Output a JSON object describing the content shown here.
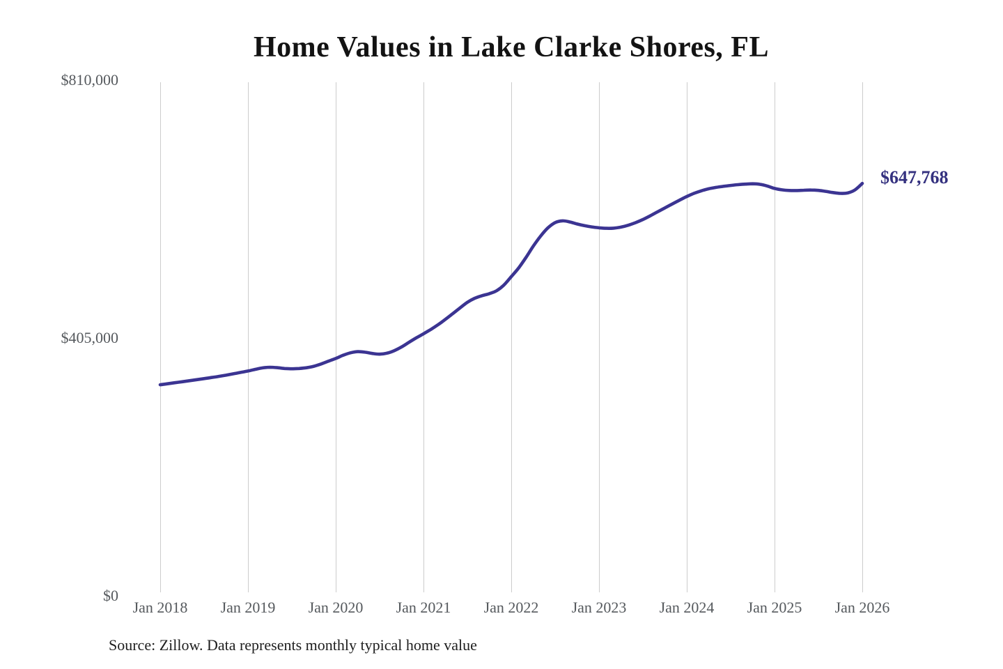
{
  "source_note": "Source: Zillow. Data represents monthly typical home value",
  "chart_data": {
    "type": "line",
    "title": "Home Values in Lake Clarke Shores, FL",
    "x_tick_labels": [
      "Jan 2018",
      "Jan 2019",
      "Jan 2020",
      "Jan 2021",
      "Jan 2022",
      "Jan 2023",
      "Jan 2024",
      "Jan 2025",
      "Jan 2026"
    ],
    "y_tick_labels": [
      "$0",
      "$405,000",
      "$810,000"
    ],
    "ylim": [
      0,
      810000
    ],
    "x_range": {
      "start": "2018-01",
      "end": "2026-01",
      "step": "month"
    },
    "grid": "vertical-only",
    "legend": false,
    "end_label": "$647,768",
    "end_value": 647768,
    "line_color": "#3b3492",
    "end_label_color": "#34317f",
    "grid_color": "#cccccc",
    "series": [
      {
        "name": "Typical home value",
        "values": [
          331500,
          333100,
          334700,
          336300,
          337900,
          339500,
          341200,
          342900,
          344700,
          346600,
          348700,
          350900,
          353100,
          355700,
          358000,
          359000,
          358400,
          357100,
          356600,
          357100,
          358300,
          360600,
          364200,
          368500,
          372800,
          377800,
          381700,
          383500,
          382700,
          380700,
          379600,
          381100,
          385100,
          390900,
          398100,
          405100,
          411600,
          418400,
          425900,
          434300,
          443200,
          452300,
          461000,
          467400,
          471400,
          474600,
          479200,
          488200,
          501300,
          514800,
          531200,
          549000,
          564800,
          577800,
          586300,
          589000,
          587300,
          584100,
          581500,
          579500,
          578100,
          577300,
          577500,
          579100,
          582100,
          586200,
          591100,
          596900,
          603100,
          609300,
          615400,
          621400,
          627200,
          632200,
          636200,
          639300,
          641500,
          643200,
          644600,
          645800,
          646700,
          647200,
          646400,
          643700,
          639900,
          637700,
          636700,
          636600,
          637100,
          637400,
          636800,
          635300,
          633400,
          632100,
          632800,
          637600,
          647768
        ]
      }
    ]
  }
}
